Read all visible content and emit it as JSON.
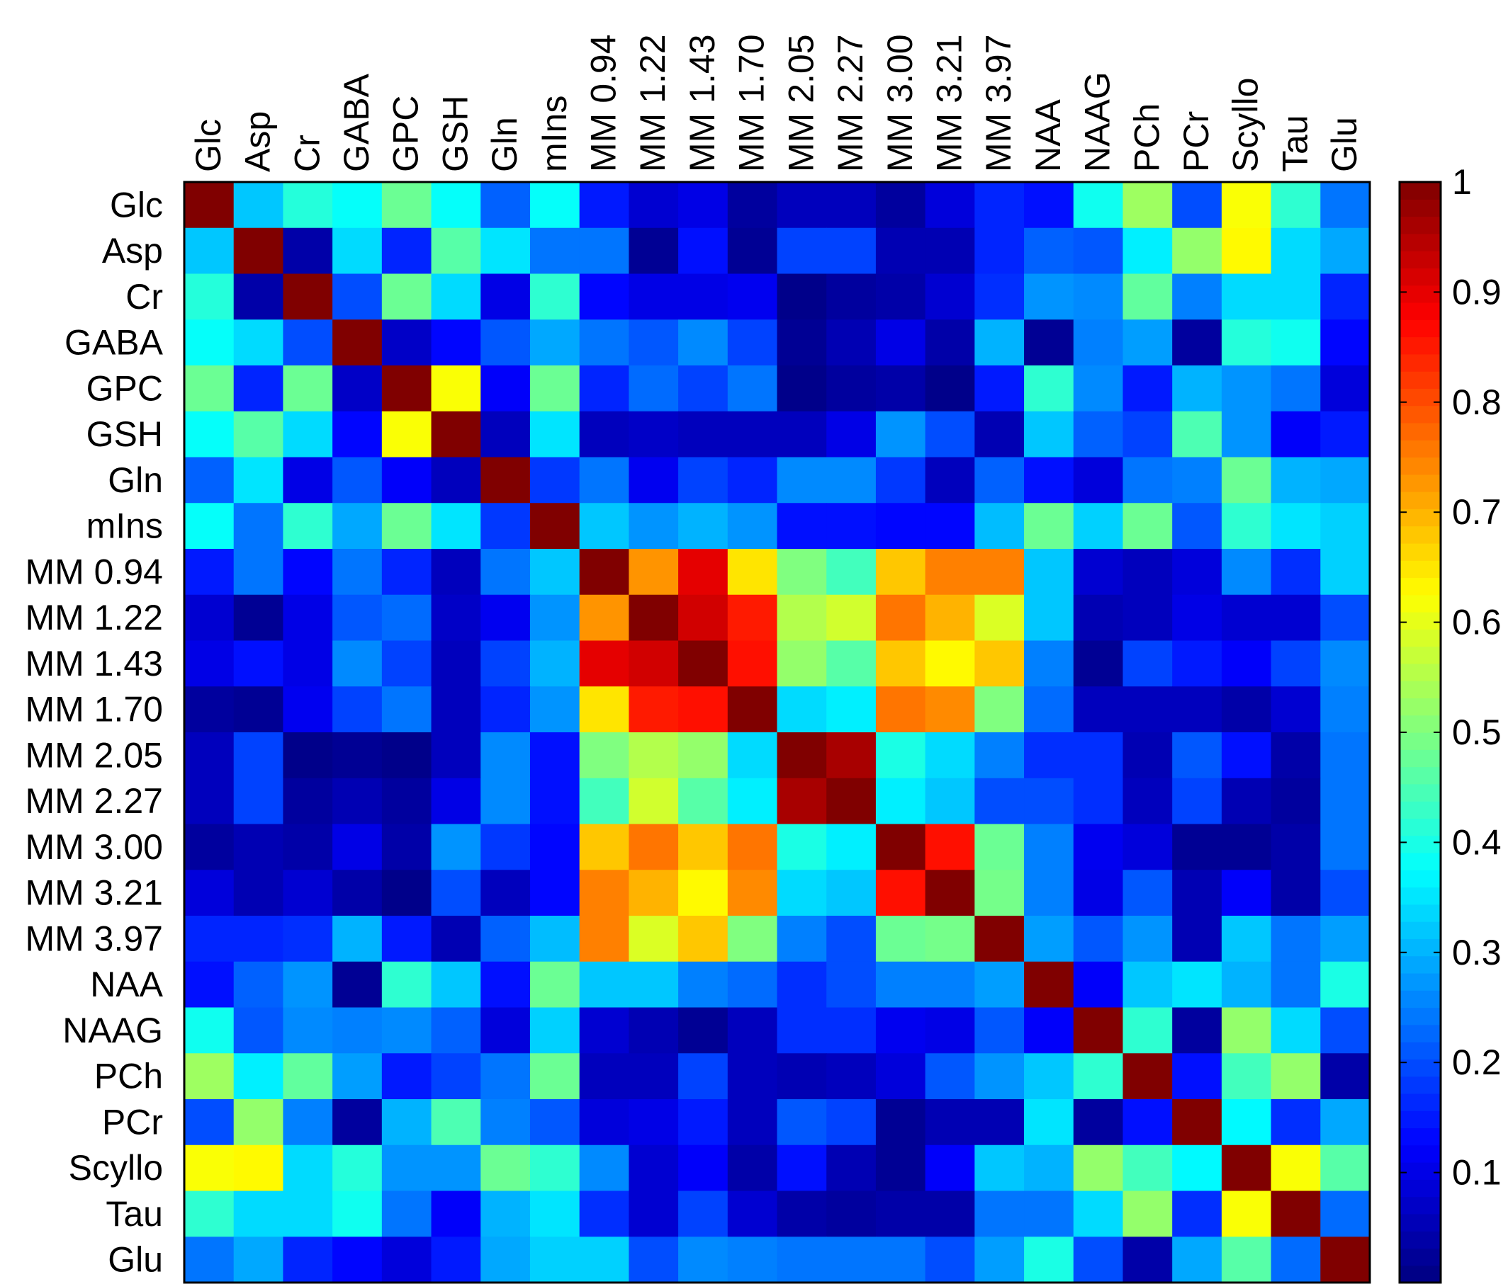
{
  "chart_data": {
    "type": "heatmap",
    "title": "",
    "xlabel": "",
    "ylabel": "",
    "colormap": "jet",
    "labels": [
      "Glc",
      "Asp",
      "Cr",
      "GABA",
      "GPC",
      "GSH",
      "Gln",
      "mIns",
      "MM 0.94",
      "MM 1.22",
      "MM 1.43",
      "MM 1.70",
      "MM 2.05",
      "MM 2.27",
      "MM 3.00",
      "MM 3.21",
      "MM 3.97",
      "NAA",
      "NAAG",
      "PCh",
      "PCr",
      "Scyllo",
      "Tau",
      "Glu"
    ],
    "values": [
      [
        1.0,
        0.32,
        0.41,
        0.38,
        0.48,
        0.38,
        0.22,
        0.38,
        0.15,
        0.08,
        0.1,
        0.03,
        0.06,
        0.06,
        0.03,
        0.09,
        0.16,
        0.14,
        0.39,
        0.53,
        0.2,
        0.62,
        0.42,
        0.24
      ],
      [
        0.32,
        1.0,
        0.04,
        0.34,
        0.16,
        0.46,
        0.35,
        0.24,
        0.24,
        0.02,
        0.14,
        0.02,
        0.19,
        0.19,
        0.05,
        0.05,
        0.16,
        0.22,
        0.21,
        0.36,
        0.52,
        0.63,
        0.34,
        0.29
      ],
      [
        0.41,
        0.04,
        1.0,
        0.2,
        0.48,
        0.34,
        0.1,
        0.42,
        0.13,
        0.1,
        0.1,
        0.11,
        0.01,
        0.03,
        0.04,
        0.08,
        0.17,
        0.27,
        0.26,
        0.47,
        0.25,
        0.34,
        0.34,
        0.16
      ],
      [
        0.38,
        0.34,
        0.2,
        1.0,
        0.07,
        0.13,
        0.21,
        0.29,
        0.24,
        0.21,
        0.26,
        0.19,
        0.02,
        0.05,
        0.1,
        0.04,
        0.3,
        0.02,
        0.25,
        0.28,
        0.03,
        0.41,
        0.39,
        0.13
      ],
      [
        0.48,
        0.16,
        0.48,
        0.07,
        1.0,
        0.62,
        0.12,
        0.48,
        0.16,
        0.23,
        0.19,
        0.24,
        0.01,
        0.03,
        0.04,
        0.01,
        0.15,
        0.42,
        0.26,
        0.15,
        0.3,
        0.27,
        0.24,
        0.09
      ],
      [
        0.38,
        0.46,
        0.34,
        0.13,
        0.62,
        1.0,
        0.06,
        0.35,
        0.06,
        0.07,
        0.06,
        0.06,
        0.06,
        0.1,
        0.27,
        0.2,
        0.05,
        0.32,
        0.22,
        0.19,
        0.45,
        0.27,
        0.12,
        0.15
      ],
      [
        0.22,
        0.35,
        0.1,
        0.21,
        0.12,
        0.06,
        1.0,
        0.18,
        0.24,
        0.11,
        0.19,
        0.16,
        0.26,
        0.26,
        0.18,
        0.06,
        0.22,
        0.14,
        0.09,
        0.24,
        0.25,
        0.48,
        0.3,
        0.29
      ],
      [
        0.38,
        0.24,
        0.42,
        0.29,
        0.48,
        0.35,
        0.18,
        1.0,
        0.32,
        0.27,
        0.3,
        0.27,
        0.14,
        0.14,
        0.13,
        0.13,
        0.31,
        0.48,
        0.33,
        0.48,
        0.21,
        0.42,
        0.35,
        0.33
      ],
      [
        0.15,
        0.24,
        0.13,
        0.24,
        0.16,
        0.06,
        0.24,
        0.32,
        1.0,
        0.73,
        0.9,
        0.65,
        0.5,
        0.44,
        0.68,
        0.75,
        0.75,
        0.32,
        0.08,
        0.06,
        0.09,
        0.26,
        0.17,
        0.33
      ],
      [
        0.08,
        0.02,
        0.1,
        0.21,
        0.23,
        0.07,
        0.11,
        0.27,
        0.73,
        1.0,
        0.92,
        0.85,
        0.55,
        0.58,
        0.76,
        0.7,
        0.59,
        0.32,
        0.05,
        0.06,
        0.1,
        0.08,
        0.08,
        0.2
      ],
      [
        0.1,
        0.14,
        0.1,
        0.26,
        0.19,
        0.06,
        0.19,
        0.3,
        0.9,
        0.92,
        1.0,
        0.86,
        0.52,
        0.46,
        0.68,
        0.63,
        0.68,
        0.25,
        0.02,
        0.19,
        0.15,
        0.12,
        0.19,
        0.26
      ],
      [
        0.03,
        0.02,
        0.11,
        0.19,
        0.24,
        0.06,
        0.16,
        0.27,
        0.65,
        0.85,
        0.86,
        1.0,
        0.34,
        0.36,
        0.76,
        0.74,
        0.5,
        0.23,
        0.06,
        0.06,
        0.06,
        0.04,
        0.08,
        0.25
      ],
      [
        0.06,
        0.19,
        0.01,
        0.02,
        0.01,
        0.06,
        0.26,
        0.14,
        0.5,
        0.55,
        0.52,
        0.34,
        1.0,
        0.96,
        0.4,
        0.34,
        0.25,
        0.17,
        0.17,
        0.05,
        0.21,
        0.14,
        0.04,
        0.24
      ],
      [
        0.06,
        0.19,
        0.03,
        0.05,
        0.03,
        0.1,
        0.26,
        0.14,
        0.44,
        0.58,
        0.46,
        0.36,
        0.96,
        1.0,
        0.36,
        0.32,
        0.2,
        0.2,
        0.17,
        0.06,
        0.19,
        0.05,
        0.03,
        0.24
      ],
      [
        0.03,
        0.05,
        0.04,
        0.1,
        0.04,
        0.27,
        0.18,
        0.13,
        0.68,
        0.76,
        0.68,
        0.76,
        0.4,
        0.36,
        1.0,
        0.86,
        0.48,
        0.25,
        0.11,
        0.09,
        0.02,
        0.02,
        0.04,
        0.24
      ],
      [
        0.09,
        0.05,
        0.08,
        0.04,
        0.01,
        0.2,
        0.06,
        0.13,
        0.75,
        0.7,
        0.63,
        0.74,
        0.34,
        0.32,
        0.86,
        1.0,
        0.49,
        0.25,
        0.1,
        0.21,
        0.05,
        0.12,
        0.04,
        0.2
      ],
      [
        0.16,
        0.16,
        0.17,
        0.3,
        0.15,
        0.05,
        0.22,
        0.31,
        0.75,
        0.59,
        0.68,
        0.5,
        0.25,
        0.2,
        0.48,
        0.49,
        1.0,
        0.28,
        0.21,
        0.27,
        0.05,
        0.32,
        0.24,
        0.28
      ],
      [
        0.14,
        0.22,
        0.27,
        0.02,
        0.42,
        0.32,
        0.14,
        0.48,
        0.32,
        0.32,
        0.25,
        0.23,
        0.17,
        0.2,
        0.25,
        0.25,
        0.28,
        1.0,
        0.12,
        0.32,
        0.35,
        0.3,
        0.24,
        0.4
      ],
      [
        0.39,
        0.21,
        0.26,
        0.25,
        0.26,
        0.22,
        0.09,
        0.33,
        0.08,
        0.05,
        0.02,
        0.06,
        0.17,
        0.17,
        0.11,
        0.1,
        0.21,
        0.12,
        1.0,
        0.42,
        0.03,
        0.52,
        0.34,
        0.2
      ],
      [
        0.53,
        0.36,
        0.47,
        0.28,
        0.15,
        0.19,
        0.24,
        0.48,
        0.06,
        0.06,
        0.19,
        0.06,
        0.05,
        0.06,
        0.09,
        0.21,
        0.27,
        0.32,
        0.42,
        1.0,
        0.14,
        0.44,
        0.52,
        0.04
      ],
      [
        0.2,
        0.52,
        0.25,
        0.03,
        0.3,
        0.45,
        0.25,
        0.21,
        0.09,
        0.1,
        0.15,
        0.06,
        0.21,
        0.19,
        0.02,
        0.05,
        0.05,
        0.35,
        0.03,
        0.14,
        1.0,
        0.37,
        0.17,
        0.29
      ],
      [
        0.62,
        0.63,
        0.34,
        0.41,
        0.27,
        0.27,
        0.48,
        0.42,
        0.26,
        0.08,
        0.12,
        0.04,
        0.14,
        0.05,
        0.02,
        0.12,
        0.32,
        0.3,
        0.52,
        0.44,
        0.37,
        1.0,
        0.62,
        0.46
      ],
      [
        0.42,
        0.34,
        0.34,
        0.39,
        0.24,
        0.12,
        0.3,
        0.35,
        0.17,
        0.08,
        0.19,
        0.08,
        0.04,
        0.03,
        0.04,
        0.04,
        0.24,
        0.24,
        0.34,
        0.52,
        0.17,
        0.62,
        1.0,
        0.23
      ],
      [
        0.24,
        0.29,
        0.16,
        0.13,
        0.09,
        0.15,
        0.29,
        0.33,
        0.33,
        0.2,
        0.26,
        0.25,
        0.24,
        0.24,
        0.24,
        0.2,
        0.28,
        0.4,
        0.2,
        0.04,
        0.29,
        0.46,
        0.23,
        1.0
      ]
    ],
    "colorbar": {
      "min": 0.0,
      "max": 1.0,
      "ticks": [
        0.1,
        0.2,
        0.3,
        0.4,
        0.5,
        0.6,
        0.7,
        0.8,
        0.9,
        1
      ],
      "tick_labels": [
        "0.1",
        "0.2",
        "0.3",
        "0.4",
        "0.5",
        "0.6",
        "0.7",
        "0.8",
        "0.9",
        "1"
      ]
    },
    "grid": false,
    "legend": "colorbar-right"
  }
}
